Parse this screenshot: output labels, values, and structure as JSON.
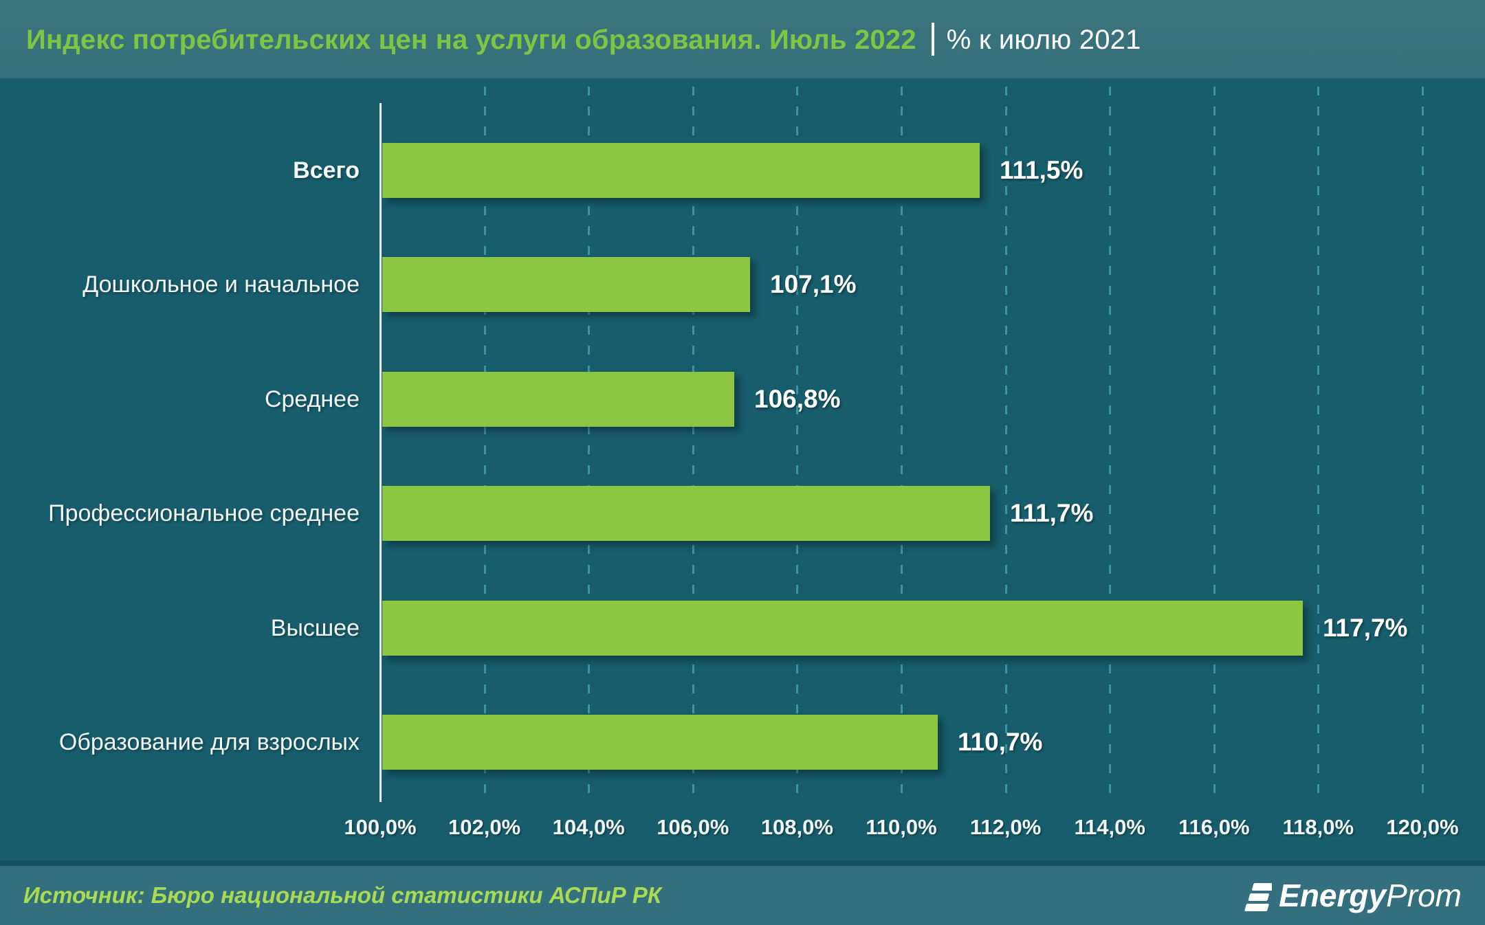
{
  "header": {
    "title_main": "Индекс потребительских цен на услуги образования. Июль 2022",
    "separator": "|",
    "title_sub": "% к июлю 2021"
  },
  "chart_data": {
    "type": "bar",
    "orientation": "horizontal",
    "title": "Индекс потребительских цен на услуги образования. Июль 2022 | % к июлю 2021",
    "categories": [
      "Всего",
      "Дошкольное и начальное",
      "Среднее",
      "Профессиональное среднее",
      "Высшее",
      "Образование для взрослых"
    ],
    "values": [
      111.5,
      107.1,
      106.8,
      111.7,
      117.7,
      110.7
    ],
    "value_labels": [
      "111,5%",
      "107,1%",
      "106,8%",
      "111,7%",
      "117,7%",
      "110,7%"
    ],
    "bold_categories": [
      "Всего"
    ],
    "x_axis": {
      "min": 100,
      "max": 120,
      "step": 2,
      "tick_labels": [
        "100,0%",
        "102,0%",
        "104,0%",
        "106,0%",
        "108,0%",
        "110,0%",
        "112,0%",
        "114,0%",
        "116,0%",
        "118,0%",
        "120,0%"
      ]
    },
    "grid": "dashed-vertical",
    "legend": "none",
    "colors": {
      "bar": "#8cc642",
      "grid": "#3e92a5",
      "axis": "#e9eff1",
      "background": "#175d6b",
      "header_background": "#35707a",
      "footer_background": "#346f7d",
      "title_accent": "#7ec543",
      "source_text": "#a8da52"
    }
  },
  "footer": {
    "source": "Источник: Бюро национальной статистики АСПиР РК",
    "logo": {
      "icon": "energyprom-stripes-icon",
      "text_bold": "Energy",
      "text_regular": "Prom"
    }
  }
}
